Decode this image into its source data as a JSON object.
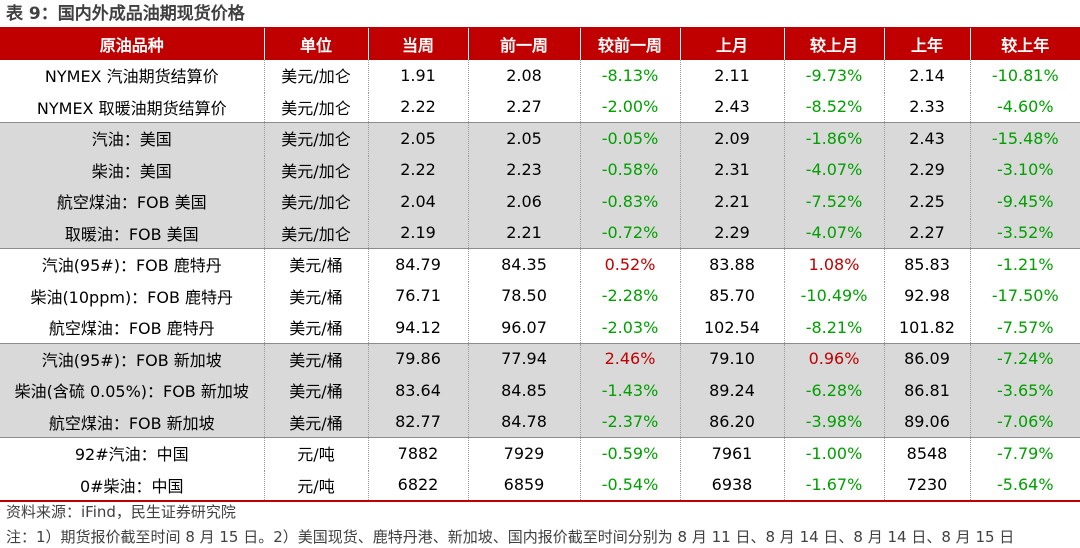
{
  "title": "表 9：国内外成品油期现货价格",
  "columns": [
    "原油品种",
    "单位",
    "当周",
    "前一周",
    "较前一周",
    "上月",
    "较上月",
    "上年",
    "较上年"
  ],
  "rows": [
    {
      "name": "NYMEX 汽油期货结算价",
      "unit": "美元/加仑",
      "cur": "1.91",
      "prev_w": "2.08",
      "chg_w": "-8.13%",
      "prev_m": "2.11",
      "chg_m": "-9.73%",
      "prev_y": "2.14",
      "chg_y": "-10.81%"
    },
    {
      "name": "NYMEX 取暖油期货结算价",
      "unit": "美元/加仑",
      "cur": "2.22",
      "prev_w": "2.27",
      "chg_w": "-2.00%",
      "prev_m": "2.43",
      "chg_m": "-8.52%",
      "prev_y": "2.33",
      "chg_y": "-4.60%"
    },
    {
      "name": "汽油：美国",
      "unit": "美元/加仑",
      "cur": "2.05",
      "prev_w": "2.05",
      "chg_w": "-0.05%",
      "prev_m": "2.09",
      "chg_m": "-1.86%",
      "prev_y": "2.43",
      "chg_y": "-15.48%"
    },
    {
      "name": "柴油：美国",
      "unit": "美元/加仑",
      "cur": "2.22",
      "prev_w": "2.23",
      "chg_w": "-0.58%",
      "prev_m": "2.31",
      "chg_m": "-4.07%",
      "prev_y": "2.29",
      "chg_y": "-3.10%"
    },
    {
      "name": "航空煤油：FOB 美国",
      "unit": "美元/加仑",
      "cur": "2.04",
      "prev_w": "2.06",
      "chg_w": "-0.83%",
      "prev_m": "2.21",
      "chg_m": "-7.52%",
      "prev_y": "2.25",
      "chg_y": "-9.45%"
    },
    {
      "name": "取暖油：FOB 美国",
      "unit": "美元/加仑",
      "cur": "2.19",
      "prev_w": "2.21",
      "chg_w": "-0.72%",
      "prev_m": "2.29",
      "chg_m": "-4.07%",
      "prev_y": "2.27",
      "chg_y": "-3.52%"
    },
    {
      "name": "汽油(95#)：FOB 鹿特丹",
      "unit": "美元/桶",
      "cur": "84.79",
      "prev_w": "84.35",
      "chg_w": "0.52%",
      "prev_m": "83.88",
      "chg_m": "1.08%",
      "prev_y": "85.83",
      "chg_y": "-1.21%"
    },
    {
      "name": "柴油(10ppm)：FOB 鹿特丹",
      "unit": "美元/桶",
      "cur": "76.71",
      "prev_w": "78.50",
      "chg_w": "-2.28%",
      "prev_m": "85.70",
      "chg_m": "-10.49%",
      "prev_y": "92.98",
      "chg_y": "-17.50%"
    },
    {
      "name": "航空煤油：FOB 鹿特丹",
      "unit": "美元/桶",
      "cur": "94.12",
      "prev_w": "96.07",
      "chg_w": "-2.03%",
      "prev_m": "102.54",
      "chg_m": "-8.21%",
      "prev_y": "101.82",
      "chg_y": "-7.57%"
    },
    {
      "name": "汽油(95#)：FOB 新加坡",
      "unit": "美元/桶",
      "cur": "79.86",
      "prev_w": "77.94",
      "chg_w": "2.46%",
      "prev_m": "79.10",
      "chg_m": "0.96%",
      "prev_y": "86.09",
      "chg_y": "-7.24%"
    },
    {
      "name": "柴油(含硫 0.05%)：FOB 新加坡",
      "unit": "美元/桶",
      "cur": "83.64",
      "prev_w": "84.85",
      "chg_w": "-1.43%",
      "prev_m": "89.24",
      "chg_m": "-6.28%",
      "prev_y": "86.81",
      "chg_y": "-3.65%"
    },
    {
      "name": "航空煤油：FOB 新加坡",
      "unit": "美元/桶",
      "cur": "82.77",
      "prev_w": "84.78",
      "chg_w": "-2.37%",
      "prev_m": "86.20",
      "chg_m": "-3.98%",
      "prev_y": "89.06",
      "chg_y": "-7.06%"
    },
    {
      "name": "92#汽油：中国",
      "unit": "元/吨",
      "cur": "7882",
      "prev_w": "7929",
      "chg_w": "-0.59%",
      "prev_m": "7961",
      "chg_m": "-1.00%",
      "prev_y": "8548",
      "chg_y": "-7.79%"
    },
    {
      "name": "0#柴油：中国",
      "unit": "元/吨",
      "cur": "6822",
      "prev_w": "6859",
      "chg_w": "-0.54%",
      "prev_m": "6938",
      "chg_m": "-1.67%",
      "prev_y": "7230",
      "chg_y": "-5.64%"
    }
  ],
  "source": "资料来源：iFind，民生证券研究院",
  "note": "注：1）期货报价截至时间 8 月 15 日。2）美国现货、鹿特丹港、新加坡、国内报价截至时间分别为 8 月 11 日、8 月 14 日、8 月 14 日、8 月 15 日",
  "colors": {
    "header_bg": "#c00000",
    "shaded_row": "#d9d9d9",
    "positive": "#c00000",
    "negative": "#00a000"
  }
}
